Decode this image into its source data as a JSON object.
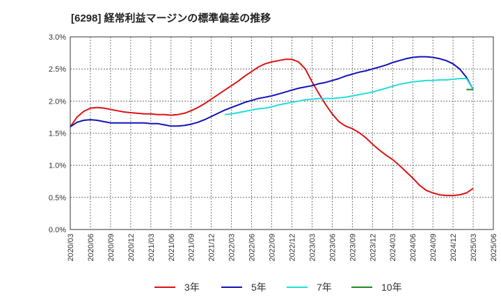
{
  "chart_data": {
    "type": "line",
    "title": "[6298]  経常利益マージンの標準偏差の推移",
    "xlabel": "",
    "ylabel": "",
    "ylim": [
      0,
      3.0
    ],
    "y_ticks": [
      "0.0%",
      "0.5%",
      "1.0%",
      "1.5%",
      "2.0%",
      "2.5%",
      "3.0%"
    ],
    "x_ticks": [
      "2020/03",
      "2020/06",
      "2020/09",
      "2020/12",
      "2021/03",
      "2021/06",
      "2021/09",
      "2021/12",
      "2022/03",
      "2022/06",
      "2022/09",
      "2022/12",
      "2023/03",
      "2023/06",
      "2023/09",
      "2023/12",
      "2024/03",
      "2024/06",
      "2024/09",
      "2024/12",
      "2025/03",
      "2025/06"
    ],
    "grid": true,
    "legend_position": "bottom",
    "series": [
      {
        "name": "3年",
        "color": "#dd1111",
        "points": [
          [
            "2020/03",
            1.6
          ],
          [
            "2020/04",
            1.75
          ],
          [
            "2020/05",
            1.84
          ],
          [
            "2020/06",
            1.89
          ],
          [
            "2020/07",
            1.9
          ],
          [
            "2020/08",
            1.89
          ],
          [
            "2020/09",
            1.87
          ],
          [
            "2020/10",
            1.85
          ],
          [
            "2020/11",
            1.83
          ],
          [
            "2020/12",
            1.82
          ],
          [
            "2021/01",
            1.81
          ],
          [
            "2021/02",
            1.8
          ],
          [
            "2021/03",
            1.8
          ],
          [
            "2021/04",
            1.79
          ],
          [
            "2021/05",
            1.79
          ],
          [
            "2021/06",
            1.78
          ],
          [
            "2021/07",
            1.79
          ],
          [
            "2021/08",
            1.81
          ],
          [
            "2021/09",
            1.85
          ],
          [
            "2021/10",
            1.9
          ],
          [
            "2021/11",
            1.96
          ],
          [
            "2021/12",
            2.03
          ],
          [
            "2022/01",
            2.1
          ],
          [
            "2022/02",
            2.17
          ],
          [
            "2022/03",
            2.24
          ],
          [
            "2022/04",
            2.31
          ],
          [
            "2022/05",
            2.39
          ],
          [
            "2022/06",
            2.46
          ],
          [
            "2022/07",
            2.53
          ],
          [
            "2022/08",
            2.58
          ],
          [
            "2022/09",
            2.61
          ],
          [
            "2022/10",
            2.63
          ],
          [
            "2022/11",
            2.65
          ],
          [
            "2022/12",
            2.65
          ],
          [
            "2023/01",
            2.61
          ],
          [
            "2023/02",
            2.5
          ],
          [
            "2023/03",
            2.3
          ],
          [
            "2023/04",
            2.12
          ],
          [
            "2023/05",
            1.95
          ],
          [
            "2023/06",
            1.8
          ],
          [
            "2023/07",
            1.68
          ],
          [
            "2023/08",
            1.61
          ],
          [
            "2023/09",
            1.57
          ],
          [
            "2023/10",
            1.51
          ],
          [
            "2023/11",
            1.43
          ],
          [
            "2023/12",
            1.33
          ],
          [
            "2024/01",
            1.24
          ],
          [
            "2024/02",
            1.16
          ],
          [
            "2024/03",
            1.09
          ],
          [
            "2024/04",
            1.0
          ],
          [
            "2024/05",
            0.9
          ],
          [
            "2024/06",
            0.8
          ],
          [
            "2024/07",
            0.69
          ],
          [
            "2024/08",
            0.61
          ],
          [
            "2024/09",
            0.57
          ],
          [
            "2024/10",
            0.54
          ],
          [
            "2024/11",
            0.53
          ],
          [
            "2024/12",
            0.53
          ],
          [
            "2025/01",
            0.54
          ],
          [
            "2025/02",
            0.57
          ],
          [
            "2025/03",
            0.64
          ]
        ]
      },
      {
        "name": "5年",
        "color": "#1111bb",
        "points": [
          [
            "2020/03",
            1.6
          ],
          [
            "2020/04",
            1.67
          ],
          [
            "2020/05",
            1.7
          ],
          [
            "2020/06",
            1.71
          ],
          [
            "2020/07",
            1.7
          ],
          [
            "2020/08",
            1.68
          ],
          [
            "2020/09",
            1.66
          ],
          [
            "2020/10",
            1.66
          ],
          [
            "2020/11",
            1.66
          ],
          [
            "2020/12",
            1.66
          ],
          [
            "2021/01",
            1.66
          ],
          [
            "2021/02",
            1.66
          ],
          [
            "2021/03",
            1.65
          ],
          [
            "2021/04",
            1.65
          ],
          [
            "2021/05",
            1.63
          ],
          [
            "2021/06",
            1.61
          ],
          [
            "2021/07",
            1.61
          ],
          [
            "2021/08",
            1.62
          ],
          [
            "2021/09",
            1.64
          ],
          [
            "2021/10",
            1.67
          ],
          [
            "2021/11",
            1.71
          ],
          [
            "2021/12",
            1.76
          ],
          [
            "2022/01",
            1.81
          ],
          [
            "2022/02",
            1.86
          ],
          [
            "2022/03",
            1.9
          ],
          [
            "2022/04",
            1.94
          ],
          [
            "2022/05",
            1.98
          ],
          [
            "2022/06",
            2.01
          ],
          [
            "2022/07",
            2.04
          ],
          [
            "2022/08",
            2.06
          ],
          [
            "2022/09",
            2.08
          ],
          [
            "2022/10",
            2.11
          ],
          [
            "2022/11",
            2.14
          ],
          [
            "2022/12",
            2.17
          ],
          [
            "2023/01",
            2.2
          ],
          [
            "2023/02",
            2.22
          ],
          [
            "2023/03",
            2.24
          ],
          [
            "2023/04",
            2.27
          ],
          [
            "2023/05",
            2.29
          ],
          [
            "2023/06",
            2.32
          ],
          [
            "2023/07",
            2.35
          ],
          [
            "2023/08",
            2.39
          ],
          [
            "2023/09",
            2.42
          ],
          [
            "2023/10",
            2.45
          ],
          [
            "2023/11",
            2.47
          ],
          [
            "2023/12",
            2.5
          ],
          [
            "2024/01",
            2.53
          ],
          [
            "2024/02",
            2.56
          ],
          [
            "2024/03",
            2.6
          ],
          [
            "2024/04",
            2.63
          ],
          [
            "2024/05",
            2.66
          ],
          [
            "2024/06",
            2.68
          ],
          [
            "2024/07",
            2.69
          ],
          [
            "2024/08",
            2.69
          ],
          [
            "2024/09",
            2.68
          ],
          [
            "2024/10",
            2.66
          ],
          [
            "2024/11",
            2.63
          ],
          [
            "2024/12",
            2.58
          ],
          [
            "2025/01",
            2.5
          ],
          [
            "2025/02",
            2.37
          ],
          [
            "2025/03",
            2.18
          ]
        ]
      },
      {
        "name": "7年",
        "color": "#22dddd",
        "points": [
          [
            "2022/02",
            1.79
          ],
          [
            "2022/03",
            1.8
          ],
          [
            "2022/04",
            1.82
          ],
          [
            "2022/05",
            1.84
          ],
          [
            "2022/06",
            1.86
          ],
          [
            "2022/07",
            1.88
          ],
          [
            "2022/08",
            1.89
          ],
          [
            "2022/09",
            1.91
          ],
          [
            "2022/10",
            1.94
          ],
          [
            "2022/11",
            1.96
          ],
          [
            "2022/12",
            1.98
          ],
          [
            "2023/01",
            2.0
          ],
          [
            "2023/02",
            2.02
          ],
          [
            "2023/03",
            2.03
          ],
          [
            "2023/04",
            2.04
          ],
          [
            "2023/05",
            2.04
          ],
          [
            "2023/06",
            2.04
          ],
          [
            "2023/07",
            2.05
          ],
          [
            "2023/08",
            2.06
          ],
          [
            "2023/09",
            2.08
          ],
          [
            "2023/10",
            2.1
          ],
          [
            "2023/11",
            2.12
          ],
          [
            "2023/12",
            2.14
          ],
          [
            "2024/01",
            2.17
          ],
          [
            "2024/02",
            2.2
          ],
          [
            "2024/03",
            2.23
          ],
          [
            "2024/04",
            2.26
          ],
          [
            "2024/05",
            2.28
          ],
          [
            "2024/06",
            2.3
          ],
          [
            "2024/07",
            2.31
          ],
          [
            "2024/08",
            2.32
          ],
          [
            "2024/09",
            2.32
          ],
          [
            "2024/10",
            2.33
          ],
          [
            "2024/11",
            2.33
          ],
          [
            "2024/12",
            2.34
          ],
          [
            "2025/01",
            2.35
          ],
          [
            "2025/02",
            2.35
          ],
          [
            "2025/03",
            2.18
          ]
        ]
      },
      {
        "name": "10年",
        "color": "#228822",
        "points": [
          [
            "2025/02",
            2.18
          ],
          [
            "2025/03",
            2.18
          ]
        ]
      }
    ]
  }
}
